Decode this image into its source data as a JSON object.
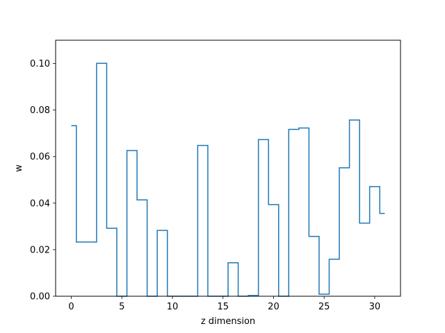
{
  "chart_data": {
    "type": "line",
    "drawstyle": "steps-mid",
    "title": "",
    "xlabel": "z dimension",
    "ylabel": "w",
    "xlim": [
      -1.55,
      32.55
    ],
    "ylim": [
      0.0,
      0.11
    ],
    "xticks": [
      0,
      5,
      10,
      15,
      20,
      25,
      30
    ],
    "yticks": [
      0.0,
      0.02,
      0.04,
      0.06,
      0.08,
      0.1
    ],
    "ytick_labels": [
      "0.00",
      "0.02",
      "0.04",
      "0.06",
      "0.08",
      "0.10"
    ],
    "grid": false,
    "legend": "none",
    "series": [
      {
        "color": "#1f77b4",
        "x": [
          0,
          1,
          2,
          3,
          4,
          5,
          6,
          7,
          8,
          9,
          10,
          11,
          12,
          13,
          14,
          15,
          16,
          17,
          18,
          19,
          20,
          21,
          22,
          23,
          24,
          25,
          26,
          27,
          28,
          29,
          30,
          31
        ],
        "y": [
          0.0733,
          0.0233,
          0.0233,
          0.1001,
          0.0292,
          0.0,
          0.0626,
          0.0414,
          0.0,
          0.0283,
          0.0,
          0.0,
          0.0,
          0.0648,
          0.0,
          0.0,
          0.0144,
          0.0,
          0.0003,
          0.0673,
          0.0394,
          0.0,
          0.0717,
          0.0723,
          0.0257,
          0.0009,
          0.0159,
          0.0552,
          0.0757,
          0.0314,
          0.0471,
          0.0356
        ]
      }
    ]
  }
}
